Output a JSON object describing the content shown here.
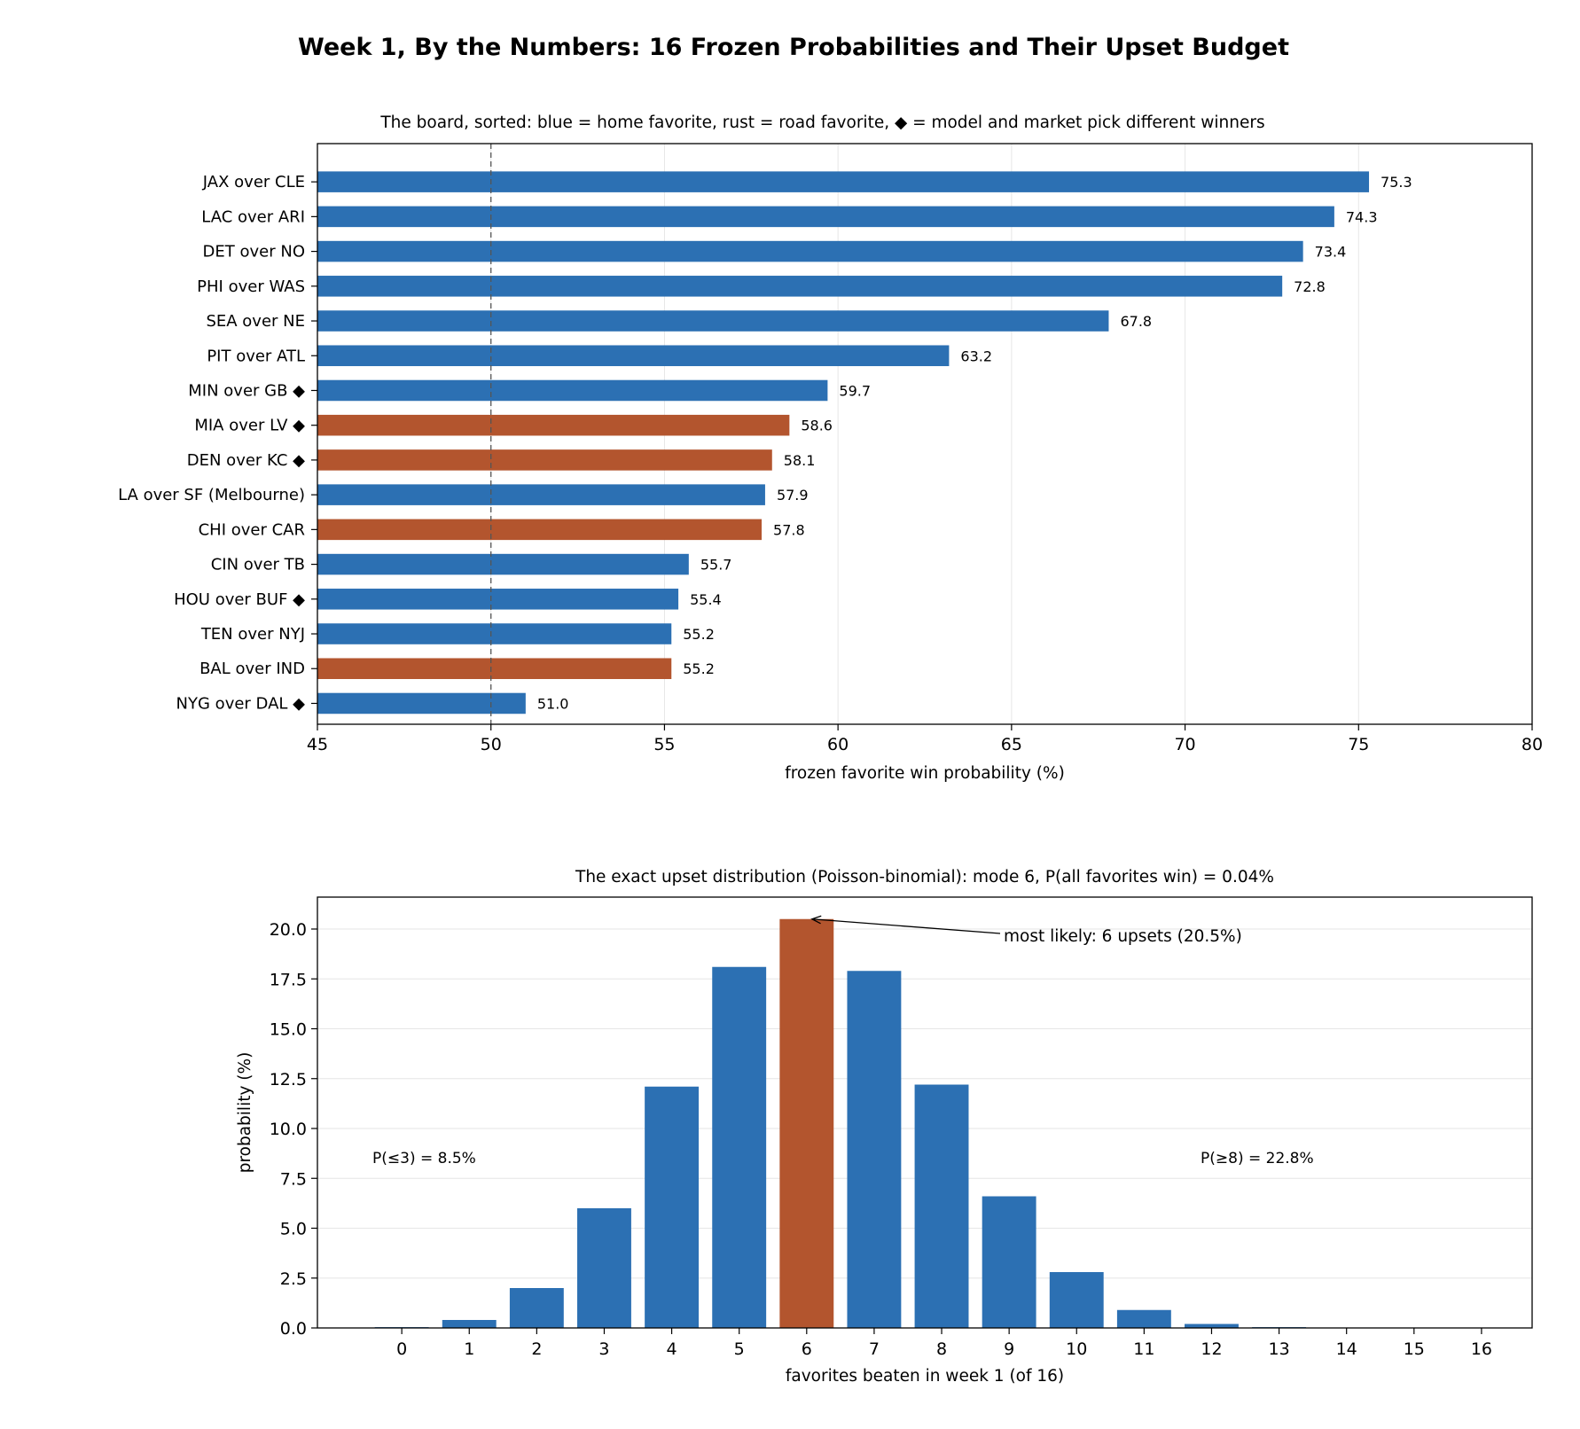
{
  "suptitle": "Week 1, By the Numbers: 16 Frozen Probabilities and Their Upset Budget",
  "colors": {
    "home": "#2c70b3",
    "road": "#b3552e",
    "grid": "#e6e6e6"
  },
  "chart_data": [
    {
      "type": "bar",
      "orientation": "horizontal",
      "title": "The board, sorted: blue = home favorite, rust = road favorite, ◆ = model and market pick different winners",
      "xlabel": "frozen favorite win probability (%)",
      "ylabel": "",
      "xlim": [
        45,
        80
      ],
      "xticks": [
        "45",
        "50",
        "55",
        "60",
        "65",
        "70",
        "75",
        "80"
      ],
      "reference_line_x": 50,
      "grid": "vertical",
      "categories": [
        "JAX over CLE",
        "LAC over ARI",
        "DET over NO",
        "PHI over WAS",
        "SEA over NE",
        "PIT over ATL",
        "MIN over GB ◆",
        "MIA over LV ◆",
        "DEN over KC ◆",
        "LA over SF (Melbourne)",
        "CHI over CAR",
        "CIN over TB",
        "HOU over BUF ◆",
        "TEN over NYJ",
        "BAL over IND",
        "NYG over DAL ◆"
      ],
      "values": [
        75.3,
        74.3,
        73.4,
        72.8,
        67.8,
        63.2,
        59.7,
        58.6,
        58.1,
        57.9,
        57.8,
        55.7,
        55.4,
        55.2,
        55.2,
        51.0
      ],
      "value_labels": [
        "75.3",
        "74.3",
        "73.4",
        "72.8",
        "67.8",
        "63.2",
        "59.7",
        "58.6",
        "58.1",
        "57.9",
        "57.8",
        "55.7",
        "55.4",
        "55.2",
        "55.2",
        "51.0"
      ],
      "favorite_type": [
        "home",
        "home",
        "home",
        "home",
        "home",
        "home",
        "home",
        "road",
        "road",
        "home",
        "road",
        "home",
        "home",
        "home",
        "road",
        "home"
      ]
    },
    {
      "type": "bar",
      "title": "The exact upset distribution (Poisson-binomial): mode 6, P(all favorites win) = 0.04%",
      "xlabel": "favorites beaten in week 1 (of 16)",
      "ylabel": "probability (%)",
      "ylim": [
        0,
        21.6
      ],
      "yticks": [
        "0.0",
        "2.5",
        "5.0",
        "7.5",
        "10.0",
        "12.5",
        "15.0",
        "17.5",
        "20.0"
      ],
      "grid": "horizontal",
      "categories": [
        "0",
        "1",
        "2",
        "3",
        "4",
        "5",
        "6",
        "7",
        "8",
        "9",
        "10",
        "11",
        "12",
        "13",
        "14",
        "15",
        "16"
      ],
      "values": [
        0.04,
        0.4,
        2.0,
        6.0,
        12.1,
        18.1,
        20.5,
        17.9,
        12.2,
        6.6,
        2.8,
        0.9,
        0.2,
        0.04,
        0.01,
        0.0,
        0.0
      ],
      "highlight_index": 6,
      "annotations": {
        "mode": "most likely: 6 upsets (20.5%)",
        "left_tail": "P(≤3) = 8.5%",
        "right_tail": "P(≥8) = 22.8%"
      }
    }
  ]
}
